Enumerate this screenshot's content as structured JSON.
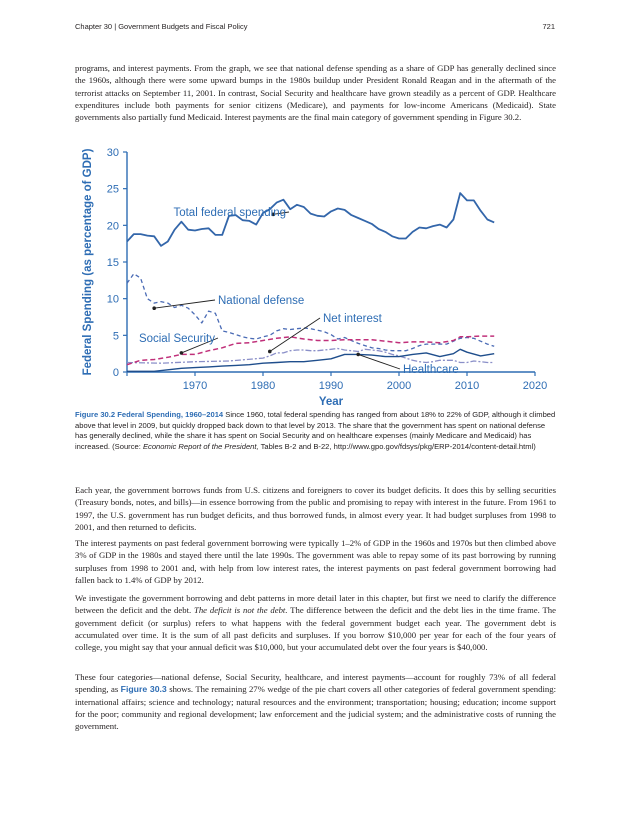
{
  "header": {
    "chapter": "Chapter 30 | Government Budgets and Fiscal Policy",
    "page_number": "721"
  },
  "paragraphs": {
    "p1": "programs, and interest payments. From the graph, we see that national defense spending as a share of GDP has generally declined since the 1960s, although there were some upward bumps in the 1980s buildup under President Ronald Reagan and in the aftermath of the terrorist attacks on September 11, 2001. In contrast, Social Security and healthcare have grown steadily as a percent of GDP. Healthcare expenditures include both payments for senior citizens (Medicare), and payments for low-income Americans (Medicaid). State governments also partially fund Medicaid. Interest payments are the final main category of government spending in Figure 30.2.",
    "p2": "Each year, the government borrows funds from U.S. citizens and foreigners to cover its budget deficits. It does this by selling securities (Treasury bonds, notes, and bills)—in essence borrowing from the public and promising to repay with interest in the future. From 1961 to 1997, the U.S. government has run budget deficits, and thus borrowed funds, in almost every year. It had budget surpluses from 1998 to 2001, and then returned to deficits.",
    "p3": "The interest payments on past federal government borrowing were typically 1–2% of GDP in the 1960s and 1970s but then climbed above 3% of GDP in the 1980s and stayed there until the late 1990s. The government was able to repay some of its past borrowing by running surpluses from 1998 to 2001 and, with help from low interest rates, the interest payments on past federal government borrowing had fallen back to 1.4% of GDP by 2012.",
    "p4_a": "We investigate the government borrowing and debt patterns in more detail later in this chapter, but first we need to clarify the difference between the deficit and the debt. ",
    "p4_em": "The deficit is not the debt.",
    "p4_b": " The difference between the deficit and the debt lies in the time frame. The government deficit (or surplus) refers to what happens with the federal government budget each year. The government debt is accumulated over time. It is the sum of all past deficits and surpluses. If you borrow $10,000 per year for each of the four years of college, you might say that your annual deficit was $10,000, but your accumulated debt over the four years is $40,000.",
    "p5_a": "These four categories—national defense, Social Security, healthcare, and interest payments—account for roughly 73% of all federal spending, as ",
    "p5_link": "Figure 30.3",
    "p5_b": " shows. The remaining 27% wedge of the pie chart covers all other categories of federal government spending: international affairs; science and technology; natural resources and the environment; transportation; housing; education; income support for the poor; community and regional development; law enforcement and the judicial system; and the administrative costs of running the government."
  },
  "caption": {
    "title": "Figure 30.2 Federal Spending, 1960–2014",
    "text_a": " Since 1960, total federal spending has ranged from about 18% to 22% of GDP, although it climbed above that level in 2009, but quickly dropped back down to that level by 2013. The share that the government has spent on national defense has generally declined, while the share it has spent on Social Security and on healthcare expenses (mainly Medicare and Medicaid) has increased. (Source: ",
    "source_em": "Economic Report of the President,",
    "text_b": " Tables B-2 and B-22, http://www.gpo.gov/fdsys/pkg/ERP-2014/content-detail.html)"
  },
  "colors": {
    "axis": "#2e6db4",
    "total": "#3366aa",
    "defense": "#4a6bb5",
    "net_interest": "#8a8fc8",
    "social_security": "#c0307a",
    "healthcare": "#1f4e8c"
  },
  "chart_data": {
    "type": "line",
    "xlabel": "Year",
    "ylabel": "Federal Spending (as percentage of GDP)",
    "xlim": [
      1960,
      2020
    ],
    "ylim": [
      0,
      30
    ],
    "xticks": [
      1960,
      1970,
      1980,
      1990,
      2000,
      2010,
      2020
    ],
    "yticks": [
      0,
      5,
      10,
      15,
      20,
      25,
      30
    ],
    "grid": false,
    "series": [
      {
        "name": "Total federal spending",
        "style": "solid",
        "x": [
          1960,
          1961,
          1962,
          1963,
          1964,
          1965,
          1966,
          1967,
          1968,
          1969,
          1970,
          1971,
          1972,
          1973,
          1974,
          1975,
          1976,
          1977,
          1978,
          1979,
          1980,
          1981,
          1982,
          1983,
          1984,
          1985,
          1986,
          1987,
          1988,
          1989,
          1990,
          1991,
          1992,
          1993,
          1994,
          1995,
          1996,
          1997,
          1998,
          1999,
          2000,
          2001,
          2002,
          2003,
          2004,
          2005,
          2006,
          2007,
          2008,
          2009,
          2010,
          2011,
          2012,
          2013,
          2014
        ],
        "y": [
          17.8,
          18.8,
          18.8,
          18.6,
          18.5,
          17.2,
          17.8,
          19.4,
          20.5,
          19.4,
          19.3,
          19.5,
          19.6,
          18.7,
          18.7,
          21.3,
          21.4,
          20.7,
          20.6,
          20.1,
          21.7,
          22.2,
          23.1,
          23.5,
          22.2,
          22.8,
          22.5,
          21.6,
          21.3,
          21.2,
          21.9,
          22.3,
          22.1,
          21.4,
          21.0,
          20.6,
          20.2,
          19.5,
          19.1,
          18.5,
          18.2,
          18.2,
          19.1,
          19.7,
          19.6,
          19.9,
          20.1,
          19.7,
          20.8,
          24.4,
          23.4,
          23.4,
          22.0,
          20.8,
          20.4
        ]
      },
      {
        "name": "National defense",
        "style": "dashed",
        "x": [
          1960,
          1961,
          1962,
          1963,
          1964,
          1965,
          1966,
          1967,
          1968,
          1969,
          1970,
          1971,
          1972,
          1973,
          1974,
          1975,
          1976,
          1977,
          1978,
          1979,
          1980,
          1981,
          1982,
          1983,
          1984,
          1985,
          1986,
          1987,
          1988,
          1989,
          1990,
          1991,
          1992,
          1993,
          1994,
          1995,
          1996,
          1997,
          1998,
          1999,
          2000,
          2001,
          2002,
          2003,
          2004,
          2005,
          2006,
          2007,
          2008,
          2009,
          2010,
          2011,
          2012,
          2013,
          2014
        ],
        "y": [
          12.1,
          13.4,
          12.8,
          10.0,
          9.4,
          9.6,
          9.4,
          8.8,
          9.1,
          8.7,
          7.8,
          6.7,
          8.3,
          8.0,
          5.6,
          5.4,
          5.1,
          4.8,
          4.6,
          4.5,
          4.8,
          5.0,
          5.6,
          5.9,
          5.8,
          5.9,
          6.0,
          5.9,
          5.7,
          5.5,
          5.1,
          4.5,
          4.7,
          4.3,
          3.9,
          3.6,
          3.3,
          3.2,
          3.0,
          2.9,
          2.9,
          2.9,
          3.2,
          3.6,
          3.8,
          3.8,
          3.8,
          3.8,
          4.2,
          4.6,
          4.7,
          4.6,
          4.2,
          3.8,
          3.5
        ]
      },
      {
        "name": "Net interest",
        "style": "dash-dot",
        "x": [
          1960,
          1965,
          1970,
          1975,
          1980,
          1981,
          1982,
          1983,
          1984,
          1985,
          1986,
          1987,
          1988,
          1989,
          1990,
          1991,
          1992,
          1993,
          1994,
          1995,
          1996,
          1997,
          1998,
          1999,
          2000,
          2001,
          2002,
          2003,
          2004,
          2005,
          2006,
          2007,
          2008,
          2009,
          2010,
          2011,
          2012,
          2013,
          2014
        ],
        "y": [
          1.3,
          1.2,
          1.4,
          1.5,
          1.9,
          2.2,
          2.6,
          2.6,
          2.9,
          3.0,
          3.0,
          2.9,
          2.9,
          3.0,
          3.1,
          3.2,
          3.0,
          2.9,
          2.8,
          3.1,
          3.0,
          2.9,
          2.7,
          2.4,
          2.2,
          1.9,
          1.6,
          1.4,
          1.3,
          1.4,
          1.6,
          1.6,
          1.6,
          1.3,
          1.3,
          1.5,
          1.4,
          1.3,
          1.3
        ]
      },
      {
        "name": "Social Security",
        "style": "dashed",
        "x": [
          1960,
          1962,
          1964,
          1966,
          1968,
          1970,
          1972,
          1974,
          1976,
          1978,
          1980,
          1982,
          1984,
          1986,
          1988,
          1990,
          1992,
          1994,
          1996,
          1998,
          2000,
          2002,
          2004,
          2006,
          2008,
          2009,
          2010,
          2012,
          2014
        ],
        "y": [
          1.0,
          1.6,
          1.7,
          2.0,
          2.4,
          2.4,
          2.9,
          3.3,
          3.9,
          4.0,
          4.3,
          4.6,
          4.8,
          4.5,
          4.3,
          4.3,
          4.4,
          4.4,
          4.4,
          4.2,
          4.0,
          4.1,
          4.1,
          4.0,
          4.3,
          4.8,
          4.8,
          4.9,
          4.9
        ]
      },
      {
        "name": "Healthcare",
        "style": "solid",
        "x": [
          1960,
          1962,
          1964,
          1966,
          1968,
          1970,
          1972,
          1974,
          1976,
          1978,
          1980,
          1982,
          1984,
          1986,
          1988,
          1990,
          1992,
          1994,
          1996,
          1998,
          2000,
          2002,
          2004,
          2006,
          2008,
          2009,
          2010,
          2012,
          2014
        ],
        "y": [
          0.1,
          0.1,
          0.1,
          0.3,
          0.5,
          0.6,
          0.7,
          0.8,
          0.9,
          1.0,
          1.2,
          1.3,
          1.4,
          1.4,
          1.6,
          1.8,
          2.4,
          2.4,
          2.3,
          2.1,
          2.1,
          2.4,
          2.6,
          2.1,
          2.5,
          3.1,
          2.7,
          2.2,
          2.5
        ]
      }
    ],
    "labels": {
      "total": "Total federal spending",
      "defense": "National defense",
      "net_interest": "Net interest",
      "social_security": "Social Security",
      "healthcare": "Healthcare"
    }
  }
}
